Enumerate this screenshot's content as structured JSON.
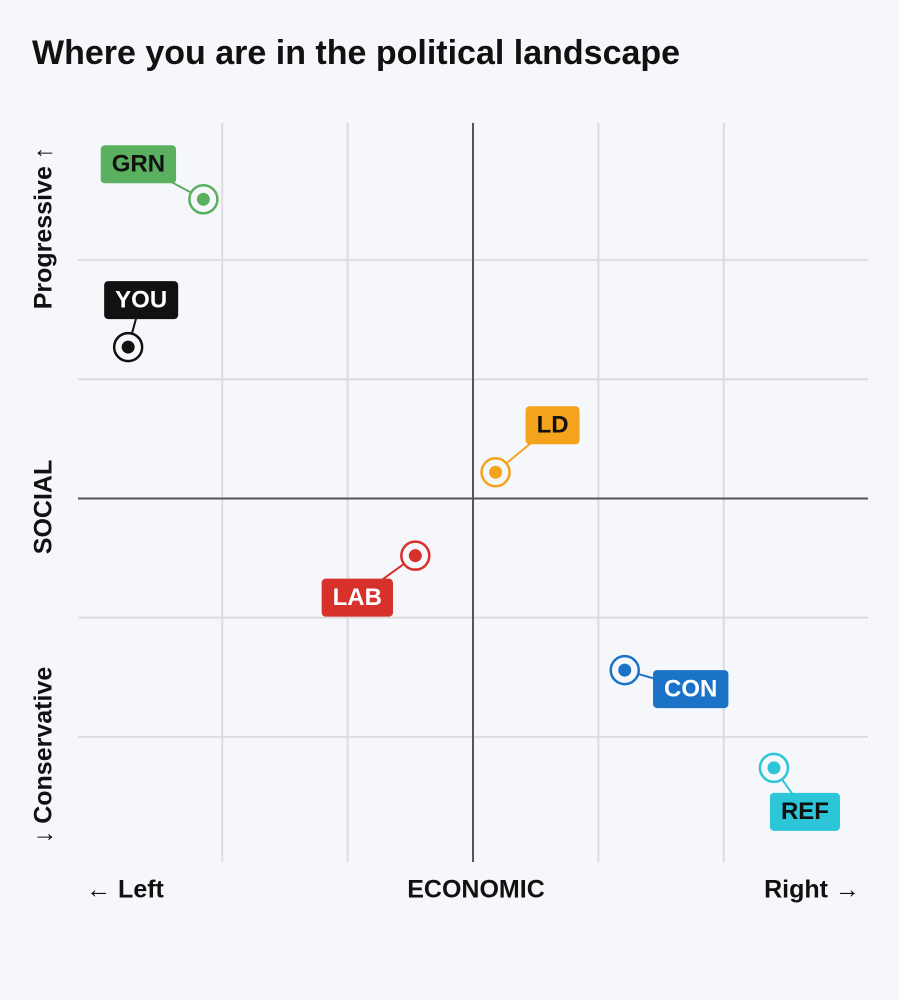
{
  "chart_data": {
    "type": "scatter",
    "title": "Where you are in the political landscape",
    "x_label": "ECONOMIC",
    "y_label": "SOCIAL",
    "x_left_label": "← Left",
    "x_right_label": "Right →",
    "y_top_label": "Progressive ↑",
    "y_bottom_label": "↓ Conservative",
    "xlim": [
      -3.15,
      3.15
    ],
    "ylim": [
      -3.05,
      3.15
    ],
    "xticks": [
      -2,
      -1,
      0,
      1,
      2
    ],
    "yticks": [
      -2,
      -1,
      0,
      1,
      2
    ],
    "grid": true,
    "series": [
      {
        "name": "GRN",
        "color": "#5bb060",
        "text_color": "#111111",
        "x": [
          -2.15
        ],
        "values": [
          2.51
        ]
      },
      {
        "name": "YOU",
        "color": "#111111",
        "text_color": "#ffffff",
        "x": [
          -2.75
        ],
        "values": [
          1.27
        ]
      },
      {
        "name": "LD",
        "color": "#f4a41c",
        "text_color": "#111111",
        "x": [
          0.18
        ],
        "values": [
          0.22
        ]
      },
      {
        "name": "LAB",
        "color": "#d8302b",
        "text_color": "#ffffff",
        "x": [
          -0.46
        ],
        "values": [
          -0.48
        ]
      },
      {
        "name": "CON",
        "color": "#1b73c7",
        "text_color": "#ffffff",
        "x": [
          1.21
        ],
        "values": [
          -1.44
        ]
      },
      {
        "name": "REF",
        "color": "#2cc6d8",
        "text_color": "#111111",
        "x": [
          2.4
        ],
        "values": [
          -2.26
        ]
      }
    ]
  }
}
